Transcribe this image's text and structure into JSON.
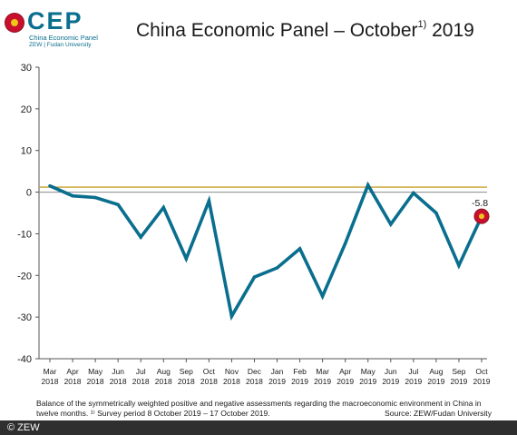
{
  "logo": {
    "text": "CEP",
    "line1": "China Economic Panel",
    "line2": "ZEW | Fudan University"
  },
  "title": {
    "main": "China Economic Panel – October",
    "sup": "1)",
    "year": " 2019"
  },
  "colors": {
    "line": "#0a6e8e",
    "reference": "#c8a02a",
    "zero": "#8a8a8a",
    "marker_outer": "#c8102e",
    "marker_inner": "#f0c419"
  },
  "chart_data": {
    "type": "line",
    "categories": [
      [
        "Mar",
        "2018"
      ],
      [
        "Apr",
        "2018"
      ],
      [
        "May",
        "2018"
      ],
      [
        "Jun",
        "2018"
      ],
      [
        "Jul",
        "2018"
      ],
      [
        "Aug",
        "2018"
      ],
      [
        "Sep",
        "2018"
      ],
      [
        "Oct",
        "2018"
      ],
      [
        "Nov",
        "2018"
      ],
      [
        "Dec",
        "2018"
      ],
      [
        "Jan",
        "2019"
      ],
      [
        "Feb",
        "2019"
      ],
      [
        "Mar",
        "2019"
      ],
      [
        "Apr",
        "2019"
      ],
      [
        "May",
        "2019"
      ],
      [
        "Jun",
        "2019"
      ],
      [
        "Jul",
        "2019"
      ],
      [
        "Aug",
        "2019"
      ],
      [
        "Sep",
        "2019"
      ],
      [
        "Oct",
        "2019"
      ]
    ],
    "values": [
      1.5,
      -0.9,
      -1.3,
      -3,
      -10.8,
      -3.7,
      -16,
      -2.1,
      -29.8,
      -20.4,
      -18.2,
      -13.6,
      -25,
      -12.3,
      1.7,
      -7.7,
      -0.2,
      -5,
      -17.6,
      -5.8
    ],
    "reference_value": 1.2,
    "ylim": [
      -40,
      30
    ],
    "yticks": [
      30,
      20,
      10,
      0,
      -10,
      -20,
      -30,
      -40
    ],
    "last_label": "-5.8",
    "grid": false
  },
  "footnote": "Balance of the symmetrically weighted positive and negative assessments regarding the macroeconomic environment in China in twelve months. ¹⁾ Survey period 8 October 2019 – 17 October 2019.",
  "source": "Source: ZEW/Fudan University",
  "copyright": "© ZEW"
}
